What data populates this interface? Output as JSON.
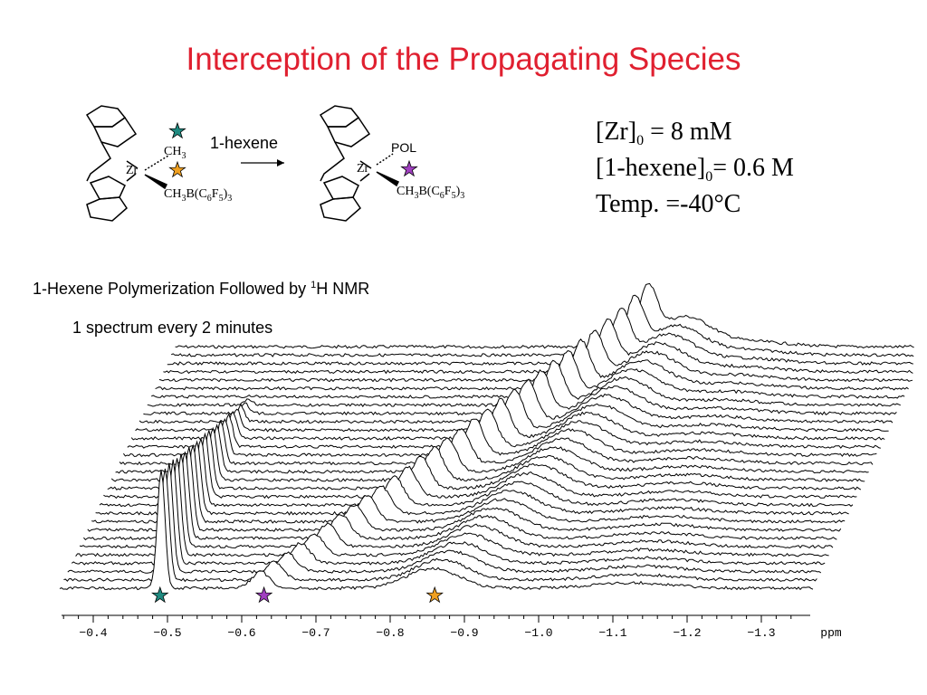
{
  "title": "Interception of the Propagating Species",
  "reaction": {
    "reagent": "1-hexene",
    "left": {
      "metal": "Zr",
      "ligand1_main": "CH",
      "ligand1_sub": "3",
      "ligand2_parts": [
        "CH",
        "3",
        "B(C",
        "6",
        "F",
        "5",
        ")",
        "3"
      ]
    },
    "right": {
      "metal": "Zr",
      "ligand1": "POL",
      "ligand2_parts": [
        "CH",
        "3",
        "B(C",
        "6",
        "F",
        "5",
        ")",
        "3"
      ]
    }
  },
  "conditions": {
    "zr_main": "[Zr]",
    "zr_sub": "0",
    "zr_value": " = 8 mM",
    "hexene_main": "[1-hexene]",
    "hexene_sub": "0",
    "hexene_value": "= 0.6 M",
    "temp": "Temp. =-40°C"
  },
  "captions": {
    "nmr_title_pre": "1-Hexene Polymerization Followed by ",
    "nmr_title_sup": "1",
    "nmr_title_post": "H NMR",
    "spectrum_rate": "1 spectrum every 2 minutes"
  },
  "axis": {
    "ticks": [
      "-0.4",
      "-0.5",
      "-0.6",
      "-0.7",
      "-0.8",
      "-0.9",
      "-1.0",
      "-1.1",
      "-1.2",
      "-1.3"
    ],
    "unit": "ppm"
  },
  "markers": [
    {
      "position_ppm": -0.49,
      "color": "#1f8a80",
      "species": "Zr-CH3"
    },
    {
      "position_ppm": -0.63,
      "color": "#a040c0",
      "species": "Zr-POL"
    },
    {
      "position_ppm": -0.86,
      "color": "#f0a020",
      "species": "CH3B(C6F5)3"
    }
  ],
  "colors": {
    "title": "#e02030",
    "teal_star": "#1f8a80",
    "purple_star": "#a040c0",
    "orange_star": "#f0a020"
  }
}
